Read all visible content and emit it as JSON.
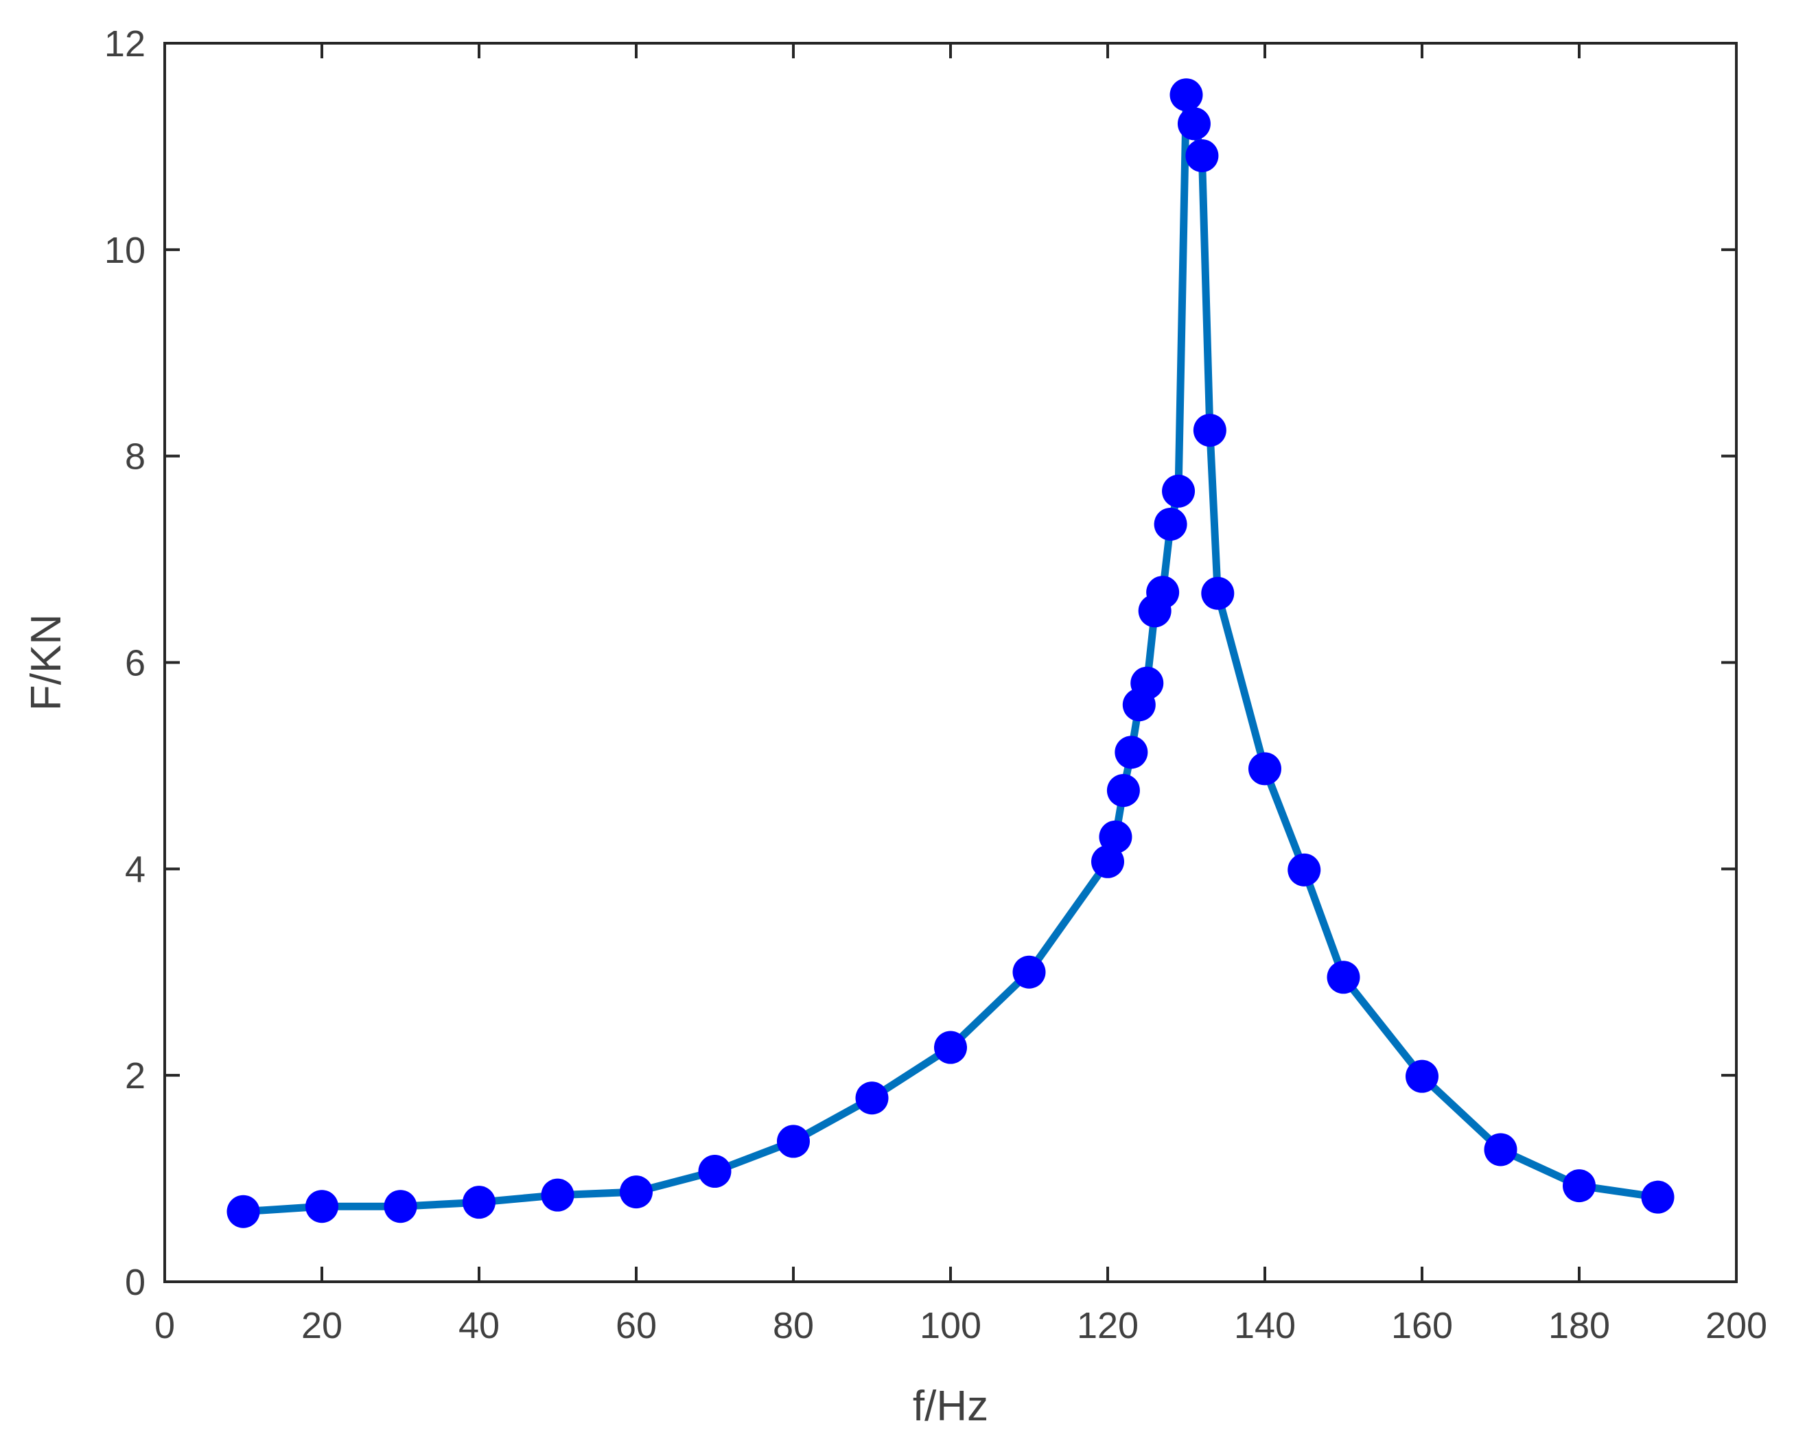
{
  "chart_data": {
    "type": "line",
    "title": "",
    "xlabel": "f/Hz",
    "ylabel": "F/KN",
    "xlim": [
      0,
      200
    ],
    "ylim": [
      0,
      12
    ],
    "xticks": [
      0,
      20,
      40,
      60,
      80,
      100,
      120,
      140,
      160,
      180,
      200
    ],
    "yticks": [
      0,
      2,
      4,
      6,
      8,
      10,
      12
    ],
    "grid": false,
    "legend": "none",
    "line_color": "#0072BD",
    "marker_color": "#0000FF",
    "series": [
      {
        "x": [
          10,
          20,
          30,
          40,
          50,
          60,
          70,
          80,
          90,
          100,
          110,
          120,
          121,
          122,
          123,
          124,
          125,
          126,
          127,
          128,
          129,
          130,
          131,
          132,
          133,
          134,
          140,
          145,
          150,
          160,
          170,
          180,
          190
        ],
        "y": [
          0.68,
          0.73,
          0.73,
          0.77,
          0.84,
          0.87,
          1.07,
          1.36,
          1.78,
          2.27,
          3.0,
          4.07,
          4.31,
          4.76,
          5.13,
          5.59,
          5.8,
          6.5,
          6.68,
          7.34,
          7.66,
          11.5,
          11.22,
          10.91,
          8.25,
          6.67,
          4.97,
          3.99,
          2.95,
          1.99,
          1.28,
          0.93,
          0.82
        ]
      }
    ]
  }
}
